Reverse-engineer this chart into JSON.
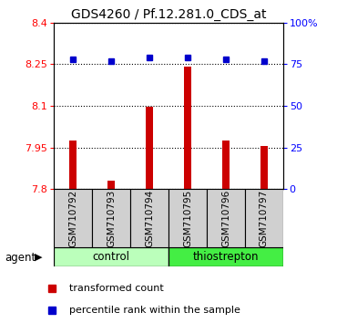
{
  "title": "GDS4260 / Pf.12.281.0_CDS_at",
  "samples": [
    "GSM710792",
    "GSM710793",
    "GSM710794",
    "GSM710795",
    "GSM710796",
    "GSM710797"
  ],
  "bar_values": [
    7.975,
    7.83,
    8.095,
    8.24,
    7.975,
    7.955
  ],
  "percentile_values": [
    78,
    77,
    79,
    79,
    78,
    77
  ],
  "ylim_left": [
    7.8,
    8.4
  ],
  "ylim_right": [
    0,
    100
  ],
  "yticks_left": [
    7.8,
    7.95,
    8.1,
    8.25,
    8.4
  ],
  "yticks_right": [
    0,
    25,
    50,
    75,
    100
  ],
  "ytick_labels_left": [
    "7.8",
    "7.95",
    "8.1",
    "8.25",
    "8.4"
  ],
  "ytick_labels_right": [
    "0",
    "25",
    "50",
    "75",
    "100%"
  ],
  "bar_color": "#cc0000",
  "dot_color": "#0000cc",
  "bar_width": 0.18,
  "control_color": "#bbffbb",
  "thiostrepton_color": "#44ee44",
  "legend_bar_label": "transformed count",
  "legend_dot_label": "percentile rank within the sample",
  "agent_label": "agent",
  "control_label": "control",
  "thiostrepton_label": "thiostrepton",
  "sample_box_color": "#d0d0d0",
  "background_color": "#ffffff"
}
